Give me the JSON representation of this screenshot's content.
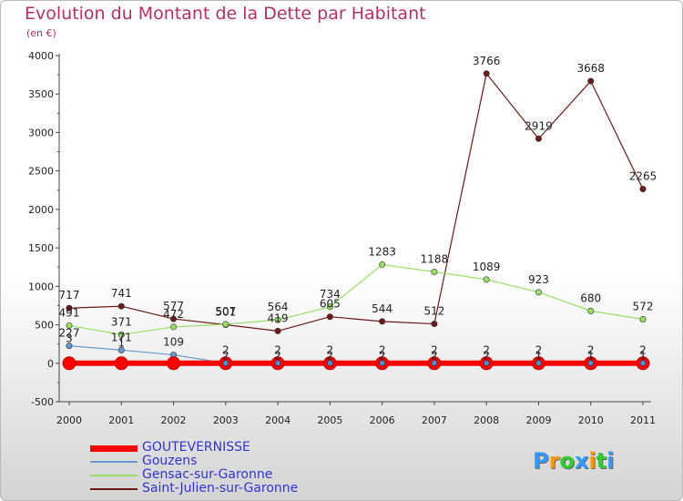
{
  "chart_data": {
    "type": "line",
    "title": "Evolution du Montant de la Dette par Habitant",
    "subtitle": "(en €)",
    "x": [
      "2000",
      "2001",
      "2002",
      "2003",
      "2004",
      "2005",
      "2006",
      "2007",
      "2008",
      "2009",
      "2010",
      "2011"
    ],
    "ylim": [
      -500,
      4000
    ],
    "yticks": [
      -500,
      0,
      500,
      1000,
      1500,
      2000,
      2500,
      3000,
      3500,
      4000
    ],
    "grid": false,
    "legend_position": "bottom-left",
    "series": [
      {
        "name": "GOUTEVERNISSE",
        "color": "#ff0000",
        "values": [
          0,
          0,
          0,
          0,
          0,
          0,
          0,
          0,
          0,
          0,
          0,
          0
        ],
        "labels": [
          "",
          "",
          "",
          "",
          "",
          "",
          "",
          "",
          "",
          "",
          "",
          ""
        ]
      },
      {
        "name": "Gouzens",
        "color": "#6699cc",
        "values": [
          227,
          171,
          109,
          2,
          2,
          2,
          2,
          2,
          2,
          2,
          2,
          2
        ],
        "labels": [
          "227",
          "171",
          "109",
          "2",
          "2",
          "2",
          "2",
          "2",
          "2",
          "2",
          "2",
          "2"
        ]
      },
      {
        "name": "Gensac-sur-Garonne",
        "color": "#99dd66",
        "values": [
          491,
          371,
          472,
          507,
          564,
          734,
          1283,
          1188,
          1089,
          923,
          680,
          572
        ],
        "labels": [
          "491",
          "371",
          "472",
          "507",
          "564",
          "734",
          "1283",
          "1188",
          "1089",
          "923",
          "680",
          "572"
        ]
      },
      {
        "name": "Saint-Julien-sur-Garonne",
        "color": "#6b1a1a",
        "values": [
          717,
          741,
          577,
          501,
          419,
          605,
          544,
          512,
          3766,
          2919,
          3668,
          2265
        ],
        "labels": [
          "717",
          "741",
          "577",
          "501",
          "419",
          "605",
          "544",
          "512",
          "3766",
          "2919",
          "3668",
          "2265"
        ]
      }
    ],
    "extra_labels": [
      {
        "x_index": 0,
        "series_index": 1,
        "text": "3"
      },
      {
        "x_index": 1,
        "series_index": 1,
        "text": "1"
      },
      {
        "x_index": 3,
        "series_index": 1,
        "text": "2"
      },
      {
        "x_index": 4,
        "series_index": 1,
        "text": "2"
      },
      {
        "x_index": 5,
        "series_index": 1,
        "text": "2"
      },
      {
        "x_index": 6,
        "series_index": 1,
        "text": "2"
      },
      {
        "x_index": 7,
        "series_index": 1,
        "text": "2"
      },
      {
        "x_index": 8,
        "series_index": 1,
        "text": "2"
      },
      {
        "x_index": 9,
        "series_index": 1,
        "text": "1"
      },
      {
        "x_index": 10,
        "series_index": 1,
        "text": "1"
      },
      {
        "x_index": 11,
        "series_index": 1,
        "text": "1"
      }
    ]
  },
  "logo": {
    "text": "Proxiti",
    "letters": [
      "P",
      "r",
      "o",
      "x",
      "i",
      "t",
      "i"
    ],
    "colors": [
      "#3399ff",
      "#ff9900",
      "#33cc33",
      "#3399ff",
      "#ff9900",
      "#33cc33",
      "#3399ff"
    ]
  }
}
